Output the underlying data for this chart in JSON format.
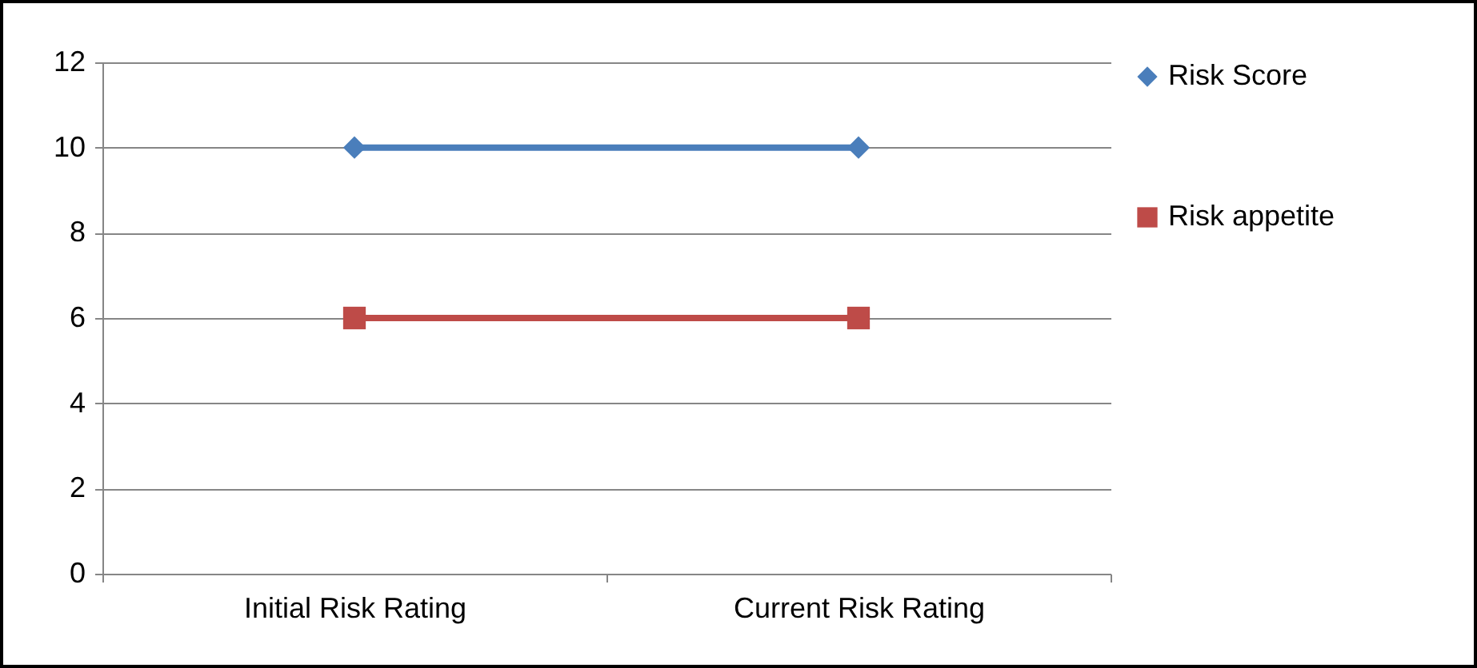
{
  "chart_data": {
    "type": "line",
    "categories": [
      "Initial Risk Rating",
      "Current Risk Rating"
    ],
    "series": [
      {
        "name": "Risk Score",
        "color": "#4a7ebb",
        "marker": "diamond",
        "values": [
          10,
          10
        ]
      },
      {
        "name": "Risk appetite",
        "color": "#be4b48",
        "marker": "square",
        "values": [
          6,
          6
        ]
      }
    ],
    "ylim": [
      0,
      12
    ],
    "yticks": [
      0,
      2,
      4,
      6,
      8,
      10,
      12
    ],
    "grid": "y",
    "legend": "right"
  }
}
